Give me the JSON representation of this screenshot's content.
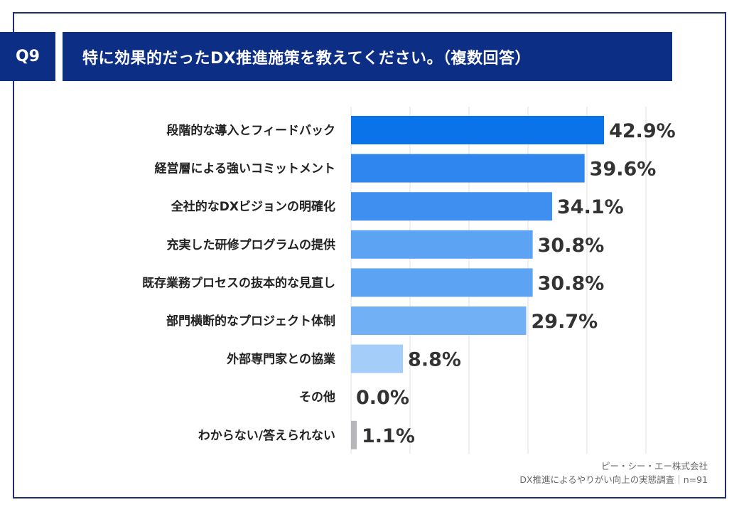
{
  "header": {
    "badge": "Q9",
    "title": "特に効果的だったDX推進施策を教えてください。（複数回答）"
  },
  "source": {
    "company": "ピー・シー・エー株式会社",
    "survey": "DX推進によるやりがい向上の実態調査｜n=91"
  },
  "colors": {
    "header_bg": "#0d2e85",
    "bars": [
      "#0a73ea",
      "#2f86ee",
      "#3f8ff0",
      "#5da3f3",
      "#5da3f3",
      "#72b0f5",
      "#a4cdf9",
      "#a4cdf9",
      "#b7b7bb"
    ]
  },
  "chart_data": {
    "type": "bar",
    "orientation": "horizontal",
    "categories": [
      "段階的な導入とフィードバック",
      "経営層による強いコミットメント",
      "全社的なDXビジョンの明確化",
      "充実した研修プログラムの提供",
      "既存業務プロセスの抜本的な見直し",
      "部門横断的なプロジェクト体制",
      "外部専門家との協業",
      "その他",
      "わからない/答えられない"
    ],
    "values": [
      42.9,
      39.6,
      34.1,
      30.8,
      30.8,
      29.7,
      8.8,
      0.0,
      1.1
    ],
    "value_labels": [
      "42.9%",
      "39.6%",
      "34.1%",
      "30.8%",
      "30.8%",
      "29.7%",
      "8.8%",
      "0.0%",
      "1.1%"
    ],
    "xlim": [
      0,
      50
    ],
    "grid": true,
    "unit": "%"
  }
}
